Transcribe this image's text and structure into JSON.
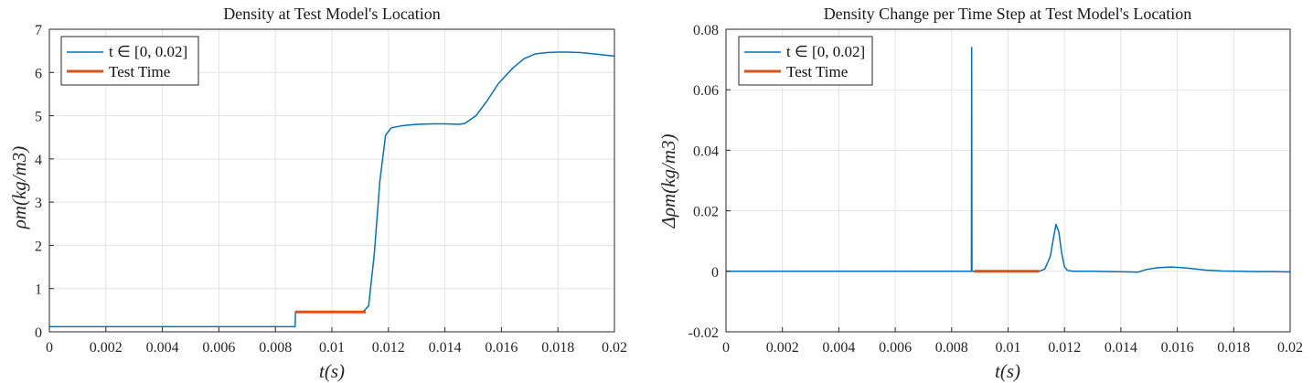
{
  "colors": {
    "series1": "#0072BD",
    "series2": "#D95319"
  },
  "chart_data": [
    {
      "type": "line",
      "title": "Density at Test Model's Location",
      "xlabel": "t(s)",
      "ylabel": "ρm(kg/m3)",
      "xlim": [
        0,
        0.02
      ],
      "ylim": [
        0,
        7
      ],
      "xticks": [
        "0",
        "0.002",
        "0.004",
        "0.006",
        "0.008",
        "0.01",
        "0.012",
        "0.014",
        "0.016",
        "0.018",
        "0.02"
      ],
      "yticks": [
        "0",
        "1",
        "2",
        "3",
        "4",
        "5",
        "6",
        "7"
      ],
      "grid": true,
      "legend_position": "top-left",
      "series": [
        {
          "name": "t ∈ [0, 0.02]",
          "x": [
            0,
            0.0087,
            0.00871,
            0.0111,
            0.0113,
            0.0115,
            0.0117,
            0.0119,
            0.0121,
            0.0125,
            0.013,
            0.0136,
            0.014,
            0.0145,
            0.0147,
            0.0151,
            0.0155,
            0.0159,
            0.0164,
            0.0168,
            0.0172,
            0.0176,
            0.018,
            0.0183,
            0.0188,
            0.0194,
            0.02
          ],
          "y": [
            0.12,
            0.12,
            0.46,
            0.46,
            0.6,
            1.8,
            3.5,
            4.55,
            4.72,
            4.77,
            4.8,
            4.81,
            4.81,
            4.8,
            4.82,
            5.0,
            5.35,
            5.75,
            6.1,
            6.32,
            6.43,
            6.46,
            6.47,
            6.47,
            6.46,
            6.42,
            6.38
          ]
        },
        {
          "name": "Test Time",
          "x": [
            0.0087,
            0.0112
          ],
          "y": [
            0.46,
            0.46
          ]
        }
      ]
    },
    {
      "type": "line",
      "title": "Density Change per Time Step at Test Model's Location",
      "xlabel": "t(s)",
      "ylabel": "Δρm(kg/m3)",
      "xlim": [
        0,
        0.02
      ],
      "ylim": [
        -0.02,
        0.08
      ],
      "xticks": [
        "0",
        "0.002",
        "0.004",
        "0.006",
        "0.008",
        "0.01",
        "0.012",
        "0.014",
        "0.016",
        "0.018",
        "0.02"
      ],
      "yticks": [
        "-0.02",
        "0",
        "0.02",
        "0.04",
        "0.06",
        "0.08"
      ],
      "grid": true,
      "legend_position": "top-left",
      "series": [
        {
          "name": "t ∈ [0, 0.02]",
          "x": [
            0,
            0.0087,
            0.00871,
            0.00872,
            0.0111,
            0.0113,
            0.0115,
            0.0116,
            0.0117,
            0.0118,
            0.0119,
            0.012,
            0.0121,
            0.0123,
            0.013,
            0.0143,
            0.0146,
            0.0149,
            0.0153,
            0.0158,
            0.0162,
            0.0166,
            0.017,
            0.0176,
            0.0182,
            0.0188,
            0.0194,
            0.02
          ],
          "y": [
            0,
            0,
            0.074,
            0,
            0,
            0.0007,
            0.005,
            0.0105,
            0.0155,
            0.013,
            0.006,
            0.0015,
            0.0003,
            0,
            0,
            -0.0002,
            -0.0003,
            0.0006,
            0.0012,
            0.0014,
            0.0012,
            0.0008,
            0.0004,
            0.0001,
            0,
            -0.0001,
            -0.0001,
            -0.0002
          ]
        },
        {
          "name": "Test Time",
          "x": [
            0.0088,
            0.0111
          ],
          "y": [
            0,
            0
          ]
        }
      ]
    }
  ]
}
